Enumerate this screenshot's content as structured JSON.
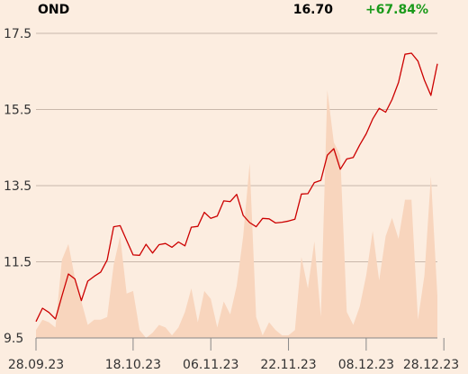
{
  "header": {
    "ticker": "OND",
    "price": "16.70",
    "change": "+67.84%",
    "change_color": "#1a9a1a"
  },
  "colors": {
    "background": "#fcede0",
    "price_line": "#cc0000",
    "volume_area": "#f8d5bd",
    "grid": "#c9b8ab",
    "axis": "#888888"
  },
  "chart_data": {
    "type": "line",
    "title": "",
    "xlabel": "",
    "ylabel": "",
    "ylim": [
      9.5,
      17.5
    ],
    "yticks": [
      9.5,
      11.5,
      13.5,
      15.5,
      17.5
    ],
    "ytick_labels": [
      "9.5",
      "11.5",
      "13.5",
      "15.5",
      "17.5"
    ],
    "xtick_labels": [
      "28.09.23",
      "18.10.23",
      "06.11.23",
      "22.11.23",
      "08.12.23",
      "28.12.23"
    ],
    "xtick_index": [
      0,
      15,
      27,
      39,
      51,
      63
    ],
    "grid": true,
    "series": [
      {
        "kind": "price",
        "values": [
          9.93,
          10.28,
          10.17,
          10.0,
          10.6,
          11.18,
          11.05,
          10.48,
          10.99,
          11.12,
          11.23,
          11.55,
          12.42,
          12.45,
          12.06,
          11.68,
          11.67,
          11.96,
          11.73,
          11.95,
          11.98,
          11.88,
          12.02,
          11.92,
          12.41,
          12.43,
          12.8,
          12.64,
          12.7,
          13.1,
          13.08,
          13.27,
          12.72,
          12.53,
          12.42,
          12.64,
          12.63,
          12.52,
          12.54,
          12.57,
          12.62,
          13.28,
          13.29,
          13.58,
          13.64,
          14.3,
          14.47,
          13.93,
          14.2,
          14.24,
          14.57,
          14.86,
          15.25,
          15.53,
          15.43,
          15.76,
          16.21,
          16.95,
          16.98,
          16.77,
          16.27,
          15.87,
          16.7
        ]
      },
      {
        "kind": "volume",
        "values": [
          0.06,
          0.14,
          0.12,
          0.08,
          0.6,
          0.72,
          0.46,
          0.28,
          0.1,
          0.14,
          0.14,
          0.16,
          0.56,
          0.78,
          0.34,
          0.36,
          0.06,
          0.0,
          0.04,
          0.1,
          0.08,
          0.02,
          0.08,
          0.2,
          0.38,
          0.12,
          0.36,
          0.3,
          0.08,
          0.28,
          0.18,
          0.4,
          0.78,
          1.34,
          0.16,
          0.02,
          0.12,
          0.06,
          0.02,
          0.02,
          0.06,
          0.62,
          0.38,
          0.74,
          0.16,
          1.9,
          1.5,
          1.4,
          0.2,
          0.1,
          0.24,
          0.48,
          0.82,
          0.44,
          0.78,
          0.92,
          0.76,
          1.06,
          1.06,
          0.14,
          0.48,
          1.24,
          0.32
        ]
      }
    ]
  }
}
